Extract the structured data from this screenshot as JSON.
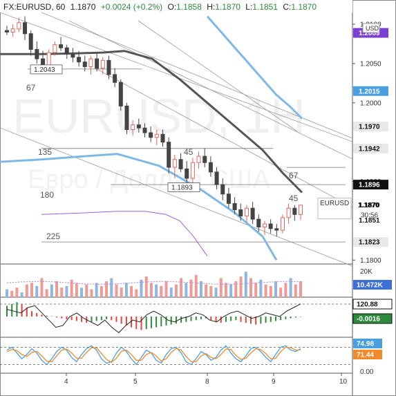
{
  "header": {
    "symbol": "FX:EURUSD, 60",
    "last": "1.1870",
    "change": "+0.0024 (+0.2%)",
    "o_label": "O:",
    "o": "1.1858",
    "h_label": "H:",
    "h": "1.1870",
    "l_label": "L:",
    "l": "1.1851",
    "c_label": "C:",
    "c": "1.1870"
  },
  "currency_label": "USD",
  "watermark": {
    "title": "EURUSD, 1H",
    "subtitle": "Евро / Доллар США"
  },
  "colors": {
    "up": "#e0665c",
    "down": "#444444",
    "green": "#2e8b3d",
    "red": "#e0453a",
    "blue_ma": "#7fb8e6",
    "dark_ma": "#555555",
    "purple": "#9c5fd6",
    "orange": "#f08a2a"
  },
  "chart_data": [
    {
      "type": "candlestick",
      "title": "FX:EURUSD, 60",
      "ylim": [
        1.1795,
        1.2115
      ],
      "y_ticks": [
        "1.2100",
        "1.2050",
        "1.2000",
        "1.1900",
        "1.1850",
        "1.1800"
      ],
      "x_ticks": [
        "4",
        "5",
        "8",
        "9",
        "10"
      ],
      "last_close": 1.187,
      "right_tags": [
        {
          "text": "1.2089",
          "value": 1.2089,
          "color": "#7b3fd6"
        },
        {
          "text": "1.2015",
          "value": 1.2015,
          "color": "#4a9fe0"
        },
        {
          "text": "1.1970",
          "value": 1.197,
          "color": "#e8e8e8"
        },
        {
          "text": "1.1942",
          "value": 1.1942,
          "color": "#e8e8e8"
        },
        {
          "text": "1.1896",
          "value": 1.1896,
          "color": "#111111"
        },
        {
          "text": "1.1870",
          "value": 1.187,
          "color": "#ffffff"
        },
        {
          "text": "1.1851",
          "value": 1.1851,
          "color": "#ffffff"
        },
        {
          "text": "1.1823",
          "value": 1.1823,
          "color": "#e8e8e8"
        }
      ],
      "price_box": {
        "label": "EURUSD",
        "price": "1.1870",
        "countdown": "30:56"
      },
      "level_labels": [
        {
          "text": "1.2043",
          "value": 1.2043
        },
        {
          "text": "1.1893",
          "value": 1.1893
        }
      ],
      "annotations": [
        "67",
        "135",
        "180",
        "225",
        "45",
        "67",
        "45"
      ],
      "candles": [
        [
          1.2092,
          1.2098,
          1.2086,
          1.209
        ],
        [
          1.209,
          1.21,
          1.2084,
          1.2094
        ],
        [
          1.2094,
          1.2108,
          1.209,
          1.2102
        ],
        [
          1.2102,
          1.211,
          1.208,
          1.2088
        ],
        [
          1.2088,
          1.2092,
          1.206,
          1.2068
        ],
        [
          1.2068,
          1.2078,
          1.205,
          1.2056
        ],
        [
          1.2056,
          1.2066,
          1.204,
          1.2048
        ],
        [
          1.2048,
          1.2068,
          1.2044,
          1.2064
        ],
        [
          1.2064,
          1.2078,
          1.206,
          1.2074
        ],
        [
          1.2074,
          1.2084,
          1.2066,
          1.207
        ],
        [
          1.207,
          1.2074,
          1.2056,
          1.2062
        ],
        [
          1.2062,
          1.207,
          1.2052,
          1.2058
        ],
        [
          1.2058,
          1.2066,
          1.2046,
          1.2052
        ],
        [
          1.2052,
          1.206,
          1.204,
          1.2046
        ],
        [
          1.2046,
          1.206,
          1.2036,
          1.2056
        ],
        [
          1.2056,
          1.2064,
          1.204,
          1.2044
        ],
        [
          1.2044,
          1.2058,
          1.2036,
          1.2054
        ],
        [
          1.2054,
          1.206,
          1.203,
          1.2036
        ],
        [
          1.2036,
          1.2044,
          1.202,
          1.2026
        ],
        [
          1.2026,
          1.203,
          1.199,
          1.1996
        ],
        [
          1.1996,
          1.2,
          1.196,
          1.1966
        ],
        [
          1.1966,
          1.1978,
          1.1958,
          1.1972
        ],
        [
          1.1972,
          1.198,
          1.1962,
          1.1968
        ],
        [
          1.1968,
          1.1974,
          1.1956,
          1.1962
        ],
        [
          1.1962,
          1.197,
          1.195,
          1.1956
        ],
        [
          1.1956,
          1.1966,
          1.1946,
          1.196
        ],
        [
          1.196,
          1.1966,
          1.1944,
          1.195
        ],
        [
          1.195,
          1.1956,
          1.191,
          1.1918
        ],
        [
          1.1918,
          1.1934,
          1.1904,
          1.1928
        ],
        [
          1.1928,
          1.1936,
          1.1912,
          1.1916
        ],
        [
          1.1916,
          1.1926,
          1.1898,
          1.1904
        ],
        [
          1.1904,
          1.193,
          1.1894,
          1.1924
        ],
        [
          1.1924,
          1.1938,
          1.1916,
          1.1932
        ],
        [
          1.1932,
          1.1942,
          1.1918,
          1.1924
        ],
        [
          1.1924,
          1.1932,
          1.1906,
          1.1912
        ],
        [
          1.1912,
          1.1918,
          1.189,
          1.1896
        ],
        [
          1.1896,
          1.1904,
          1.1876,
          1.1884
        ],
        [
          1.1884,
          1.1892,
          1.1866,
          1.1872
        ],
        [
          1.1872,
          1.188,
          1.1858,
          1.1864
        ],
        [
          1.1864,
          1.1872,
          1.185,
          1.1856
        ],
        [
          1.1856,
          1.187,
          1.1848,
          1.1866
        ],
        [
          1.1866,
          1.1874,
          1.1846,
          1.1852
        ],
        [
          1.1852,
          1.1858,
          1.1836,
          1.1842
        ],
        [
          1.1842,
          1.185,
          1.1832,
          1.1846
        ],
        [
          1.1846,
          1.1852,
          1.1834,
          1.184
        ],
        [
          1.184,
          1.1846,
          1.183,
          1.1838
        ],
        [
          1.1838,
          1.1858,
          1.1834,
          1.1854
        ],
        [
          1.1854,
          1.1872,
          1.1846,
          1.1866
        ],
        [
          1.1866,
          1.187,
          1.185,
          1.1858
        ],
        [
          1.1858,
          1.187,
          1.1851,
          1.187
        ]
      ],
      "moving_averages": [
        {
          "name": "MA blue fast",
          "color": "#7fb8e6",
          "values": [
            1.211,
            1.209,
            1.207,
            1.205,
            1.203,
            1.201,
            1.1995,
            1.198
          ]
        },
        {
          "name": "MA blue slow",
          "color": "#7fb8e6",
          "values": [
            1.1925,
            1.1928,
            1.1932,
            1.1935,
            1.192,
            1.189,
            1.186,
            1.183,
            1.18
          ]
        },
        {
          "name": "MA dark",
          "color": "#555555",
          "values": [
            1.2062,
            1.2062,
            1.2063,
            1.2064,
            1.2066,
            1.2056,
            1.203,
            1.2,
            1.197,
            1.194,
            1.191,
            1.1886
          ]
        },
        {
          "name": "MA purple",
          "color": "#9c5fd6",
          "values": [
            1.1858,
            1.186,
            1.1862,
            1.1862,
            1.1858,
            1.185,
            1.183,
            1.1805
          ]
        }
      ]
    },
    {
      "type": "bar",
      "title": "Volume",
      "y_ticks": [
        "20K"
      ],
      "last_value_label": "10.472K",
      "values": [
        5,
        4,
        6,
        3,
        8,
        9,
        7,
        12,
        5,
        8,
        10,
        6,
        7,
        11,
        9,
        6,
        8,
        5,
        9,
        7,
        10,
        12,
        8,
        6,
        9,
        7,
        5,
        11,
        13,
        9,
        8,
        7,
        10,
        6,
        8,
        12,
        9,
        11,
        14,
        10,
        8,
        7,
        6,
        12,
        9,
        8,
        10,
        13,
        16,
        12,
        9,
        11,
        8,
        7,
        10,
        6,
        9,
        12,
        8,
        10
      ]
    },
    {
      "type": "bar",
      "title": "Histogram oscillator",
      "right_tags": [
        {
          "text": "120.88",
          "color": "#111111"
        },
        {
          "text": "-0.0016",
          "color": "#2e8b3d"
        }
      ],
      "values": [
        0.6,
        0.7,
        0.8,
        0.7,
        0.5,
        0.3,
        0.2,
        0.1,
        0.05,
        0.02,
        -0.05,
        -0.1,
        -0.15,
        -0.2,
        -0.25,
        -0.3,
        -0.35,
        -0.3,
        -0.25,
        -0.2,
        -0.15,
        -0.2,
        -0.3,
        -0.4,
        -0.5,
        -0.6,
        -0.7,
        -0.75,
        -0.7,
        -0.65,
        -0.6,
        -0.55,
        -0.5,
        -0.45,
        -0.4,
        -0.35,
        -0.3,
        -0.25,
        -0.2,
        -0.15,
        -0.1,
        -0.2,
        -0.3,
        -0.35,
        -0.3,
        -0.25,
        -0.2,
        -0.3,
        -0.35,
        -0.4,
        -0.45,
        -0.4,
        -0.35,
        -0.3,
        -0.25,
        -0.2,
        -0.15,
        -0.1,
        -0.05,
        -0.02
      ],
      "line": [
        0.4,
        0.3,
        0.2,
        0.5,
        0.6,
        0.2,
        -0.2,
        -0.6,
        -0.5,
        0.0,
        0.2,
        -0.1,
        -0.3,
        -0.5,
        -0.2,
        -0.6,
        -0.9,
        -0.5,
        -0.2,
        -0.3,
        0.1,
        0.3,
        0.1,
        -0.2,
        -0.3,
        -0.1,
        0.0,
        0.2,
        0.1,
        -0.2,
        -0.3,
        0.0,
        0.2,
        0.3,
        0.1,
        -0.1,
        0.0,
        0.2,
        0.1,
        0.0,
        0.3,
        0.5,
        0.7
      ]
    },
    {
      "type": "line",
      "title": "Stochastic",
      "y_ticks": [
        "0.00"
      ],
      "right_tags": [
        {
          "text": "74.98",
          "color": "#4a9fe0"
        },
        {
          "text": "71.44",
          "color": "#f08a2a"
        }
      ],
      "ylim": [
        0,
        100
      ],
      "series": [
        {
          "color": "#4a9fe0",
          "values": [
            70,
            80,
            60,
            40,
            55,
            75,
            60,
            35,
            20,
            40,
            65,
            80,
            70,
            45,
            30,
            55,
            75,
            85,
            70,
            40,
            25,
            30,
            60,
            80,
            65,
            40,
            20,
            45,
            70,
            60,
            35,
            25,
            55,
            75,
            80,
            60,
            30,
            20,
            40,
            65,
            55,
            35,
            45,
            70,
            85,
            60,
            40,
            30,
            50,
            75,
            80,
            65,
            45,
            30,
            55,
            80,
            85,
            70,
            65,
            75
          ]
        },
        {
          "color": "#f08a2a",
          "values": [
            65,
            72,
            68,
            55,
            48,
            62,
            66,
            50,
            32,
            30,
            50,
            70,
            74,
            60,
            42,
            42,
            62,
            78,
            78,
            58,
            38,
            28,
            42,
            66,
            70,
            55,
            35,
            35,
            55,
            62,
            50,
            32,
            40,
            62,
            76,
            70,
            48,
            30,
            30,
            50,
            58,
            45,
            40,
            55,
            74,
            72,
            52,
            38,
            42,
            60,
            75,
            72,
            58,
            40,
            42,
            65,
            80,
            78,
            70,
            71
          ]
        }
      ]
    }
  ]
}
